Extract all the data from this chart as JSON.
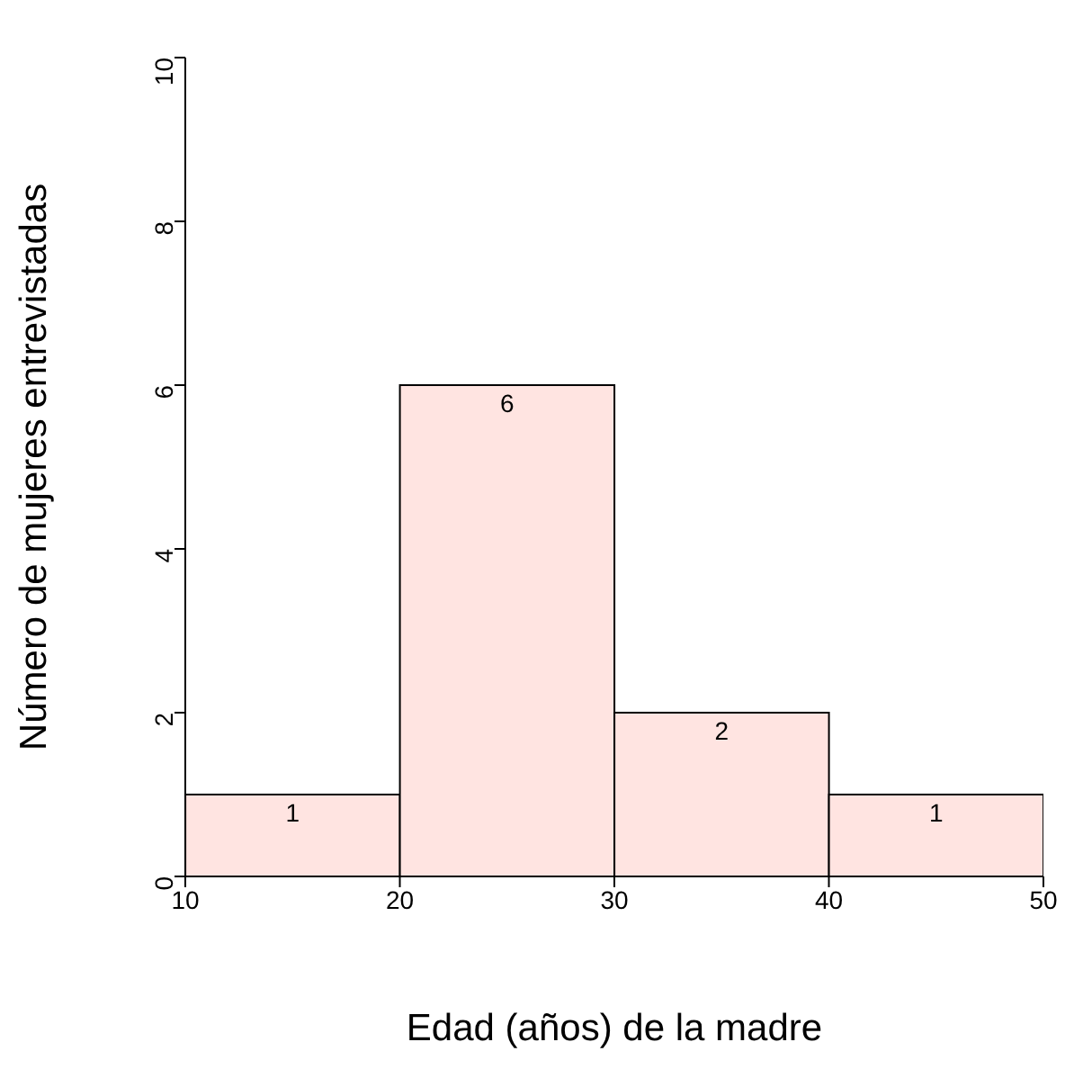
{
  "chart_data": {
    "type": "histogram",
    "xlabel": "Edad (años) de la madre",
    "ylabel": "Número de mujeres entrevistadas",
    "bins": [
      10,
      20,
      30,
      40,
      50
    ],
    "values": [
      1,
      6,
      2,
      1
    ],
    "color": "#ffe4e1",
    "xlim": [
      10,
      50
    ],
    "xticks": [
      10,
      20,
      30,
      40,
      50
    ],
    "ylim": [
      0,
      10
    ],
    "yticks": [
      0,
      2,
      4,
      6,
      8,
      10
    ],
    "data_labels": true,
    "grid": false,
    "legend": false
  }
}
